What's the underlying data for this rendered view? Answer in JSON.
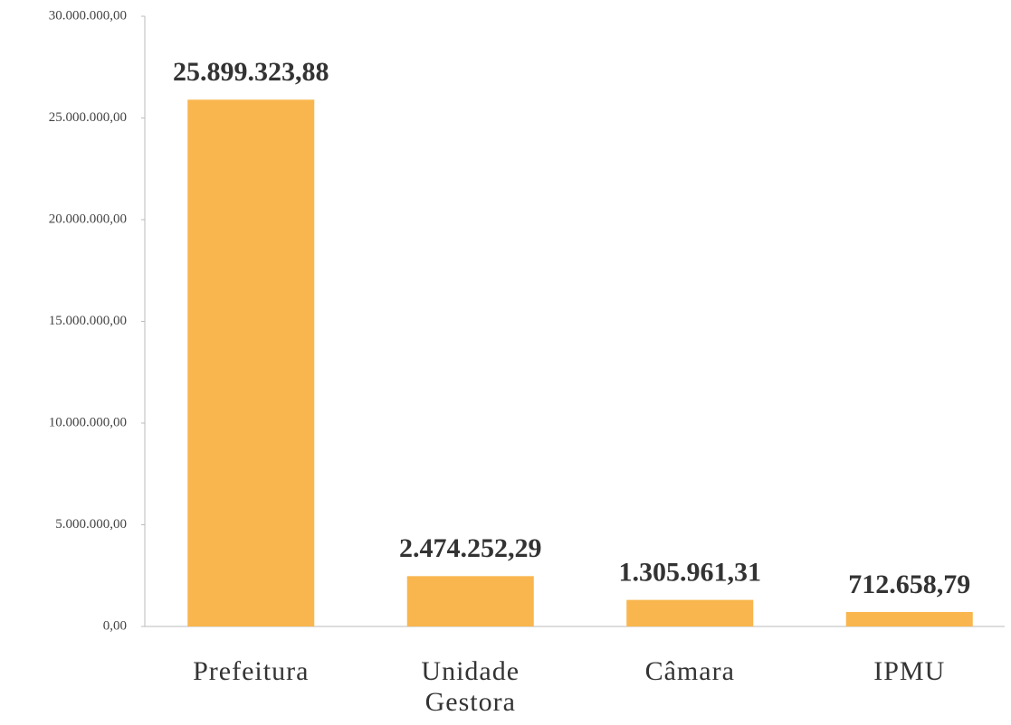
{
  "chart_data": {
    "type": "bar",
    "categories": [
      "Prefeitura",
      "Unidade Gestora",
      "Câmara",
      "IPMU"
    ],
    "values": [
      25899323.88,
      2474252.29,
      1305961.31,
      712658.79
    ],
    "value_labels": [
      "25.899.323,88",
      "2.474.252,29",
      "1.305.961,31",
      "712.658,79"
    ],
    "color": "#f9b64e",
    "ylim": [
      0,
      30000000
    ],
    "yticks": [
      {
        "value": 0,
        "label": "0,00"
      },
      {
        "value": 5000000,
        "label": "5.000.000,00"
      },
      {
        "value": 10000000,
        "label": "10.000.000,00"
      },
      {
        "value": 15000000,
        "label": "15.000.000,00"
      },
      {
        "value": 20000000,
        "label": "20.000.000,00"
      },
      {
        "value": 25000000,
        "label": "25.000.000,00"
      },
      {
        "value": 30000000,
        "label": "30.000.000,00"
      }
    ],
    "grid": false
  }
}
